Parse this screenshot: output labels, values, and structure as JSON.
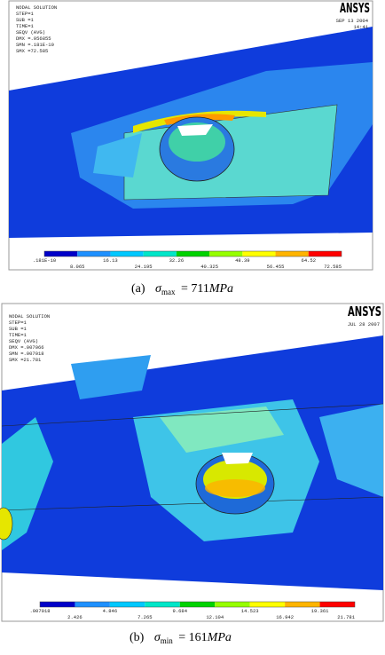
{
  "panels": [
    {
      "header": {
        "title": "NODAL SOLUTION",
        "lines": [
          "STEP=1",
          "SUB =1",
          "TIME=1",
          "SEQV     (AVG)",
          "DMX =.956855",
          "SMN =.181E-10",
          "SMX =72.585"
        ],
        "logo": "ANSYS",
        "date": "SEP 13 2004",
        "time": "14:41"
      },
      "legend": {
        "top": [
          ".181E-10",
          "16.13",
          "32.26",
          "48.39",
          "64.52"
        ],
        "bottom": [
          "8.065",
          "24.195",
          "40.325",
          "56.455",
          "72.585"
        ]
      },
      "caption": {
        "label": "(a)",
        "symbol": "σ",
        "subscript": "max",
        "value": "= 711",
        "unit": "MPa"
      }
    },
    {
      "header": {
        "title": "NODAL SOLUTION",
        "lines": [
          "STEP=1",
          "SUB =1",
          "TIME=1",
          "SEQV     (AVG)",
          "DMX =.007066",
          "SMN =.007018",
          "SMX =21.781"
        ],
        "logo": "ANSYS",
        "date": "JUL 28 2007"
      },
      "legend": {
        "top": [
          ".007018",
          "4.846",
          "9.684",
          "14.523",
          "19.361"
        ],
        "bottom": [
          "2.426",
          "7.265",
          "12.104",
          "16.942",
          "21.781"
        ]
      },
      "caption": {
        "label": "(b)",
        "symbol": "σ",
        "subscript": "min",
        "value": "= 161",
        "unit": "MPa"
      }
    }
  ]
}
